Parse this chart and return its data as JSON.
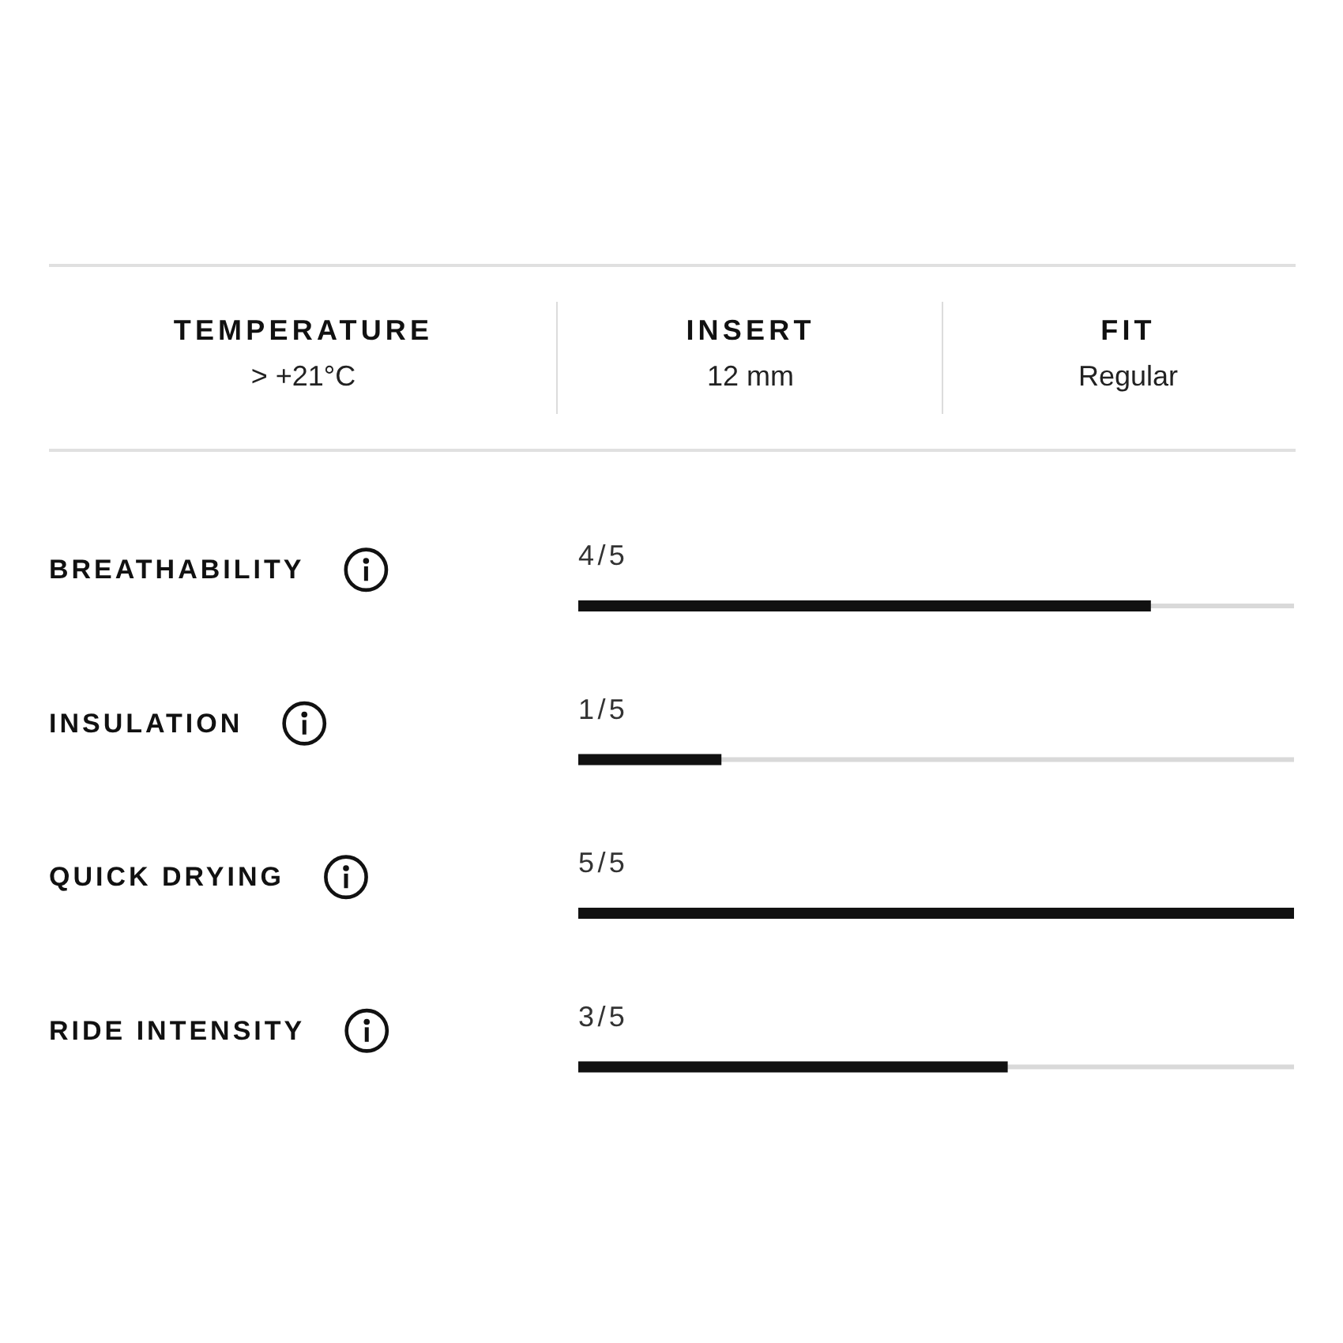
{
  "chart_data": [
    {
      "type": "other",
      "categories": [
        "TEMPERATURE",
        "INSERT",
        "FIT"
      ],
      "annotations": [
        "> +21°C",
        "12 mm",
        "Regular"
      ]
    },
    {
      "type": "bar",
      "orientation": "horizontal",
      "categories": [
        "BREATHABILITY",
        "INSULATION",
        "QUICK DRYING",
        "RIDE INTENSITY"
      ],
      "values": [
        0.8,
        0.2,
        1,
        0.6
      ],
      "value_labels": [
        "4/5",
        "1/5",
        "5/5",
        "3/5"
      ],
      "color": "#111111",
      "xlim": [
        0,
        1
      ],
      "tick_labels": "y"
    }
  ]
}
